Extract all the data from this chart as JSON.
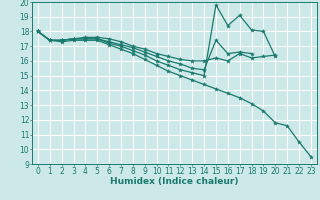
{
  "xlabel": "Humidex (Indice chaleur)",
  "bg_color": "#cce8e8",
  "grid_color": "#ffffff",
  "line_color": "#1a7a6e",
  "xlim": [
    -0.5,
    23.5
  ],
  "ylim": [
    9,
    20
  ],
  "xticks": [
    0,
    1,
    2,
    3,
    4,
    5,
    6,
    7,
    8,
    9,
    10,
    11,
    12,
    13,
    14,
    15,
    16,
    17,
    18,
    19,
    20,
    21,
    22,
    23
  ],
  "yticks": [
    9,
    10,
    11,
    12,
    13,
    14,
    15,
    16,
    17,
    18,
    19,
    20
  ],
  "series": [
    {
      "x": [
        0,
        1,
        2,
        3,
        4,
        5,
        6,
        7,
        8,
        9,
        10,
        11,
        12,
        13,
        14,
        15,
        16,
        17,
        18,
        19,
        20
      ],
      "y": [
        18,
        17.4,
        17.4,
        17.5,
        17.6,
        17.6,
        17.5,
        17.3,
        17.0,
        16.8,
        16.5,
        16.3,
        16.1,
        16.0,
        16.0,
        16.2,
        16.0,
        16.5,
        16.2,
        16.3,
        16.4
      ]
    },
    {
      "x": [
        0,
        1,
        2,
        3,
        4,
        5,
        6,
        7,
        8,
        9,
        10,
        11,
        12,
        13,
        14,
        15,
        16,
        17,
        18
      ],
      "y": [
        18,
        17.4,
        17.4,
        17.5,
        17.5,
        17.5,
        17.3,
        17.1,
        16.9,
        16.6,
        16.3,
        16.0,
        15.8,
        15.5,
        15.4,
        17.4,
        16.5,
        16.6,
        16.5
      ]
    },
    {
      "x": [
        0,
        1,
        2,
        3,
        4,
        5,
        6,
        7,
        8,
        9,
        10,
        11,
        12,
        13,
        14,
        15,
        16,
        17,
        18,
        19,
        20
      ],
      "y": [
        18,
        17.4,
        17.4,
        17.5,
        17.5,
        17.5,
        17.2,
        17.0,
        16.7,
        16.4,
        16.0,
        15.7,
        15.4,
        15.2,
        15.0,
        19.8,
        18.4,
        19.1,
        18.1,
        18.0,
        16.3
      ]
    },
    {
      "x": [
        0,
        1,
        2,
        3,
        4,
        5,
        6,
        7,
        8,
        9,
        10,
        11,
        12,
        13,
        14,
        15,
        16,
        17,
        18,
        19,
        20,
        21,
        22,
        23
      ],
      "y": [
        18,
        17.4,
        17.3,
        17.4,
        17.4,
        17.4,
        17.1,
        16.8,
        16.5,
        16.1,
        15.7,
        15.3,
        15.0,
        14.7,
        14.4,
        14.1,
        13.8,
        13.5,
        13.1,
        12.6,
        11.8,
        11.6,
        10.5,
        9.5
      ]
    }
  ]
}
